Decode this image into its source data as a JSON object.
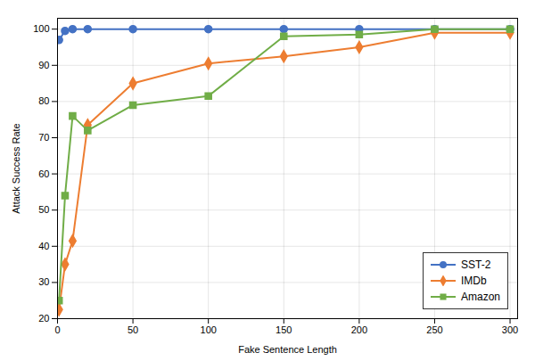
{
  "chart_data": {
    "type": "line",
    "x": [
      1,
      5,
      10,
      20,
      50,
      100,
      150,
      200,
      250,
      300
    ],
    "series": [
      {
        "name": "SST-2",
        "color": "#4472C4",
        "marker": "circle",
        "values": [
          97,
          99.5,
          100,
          100,
          100,
          100,
          100,
          100,
          100,
          100
        ]
      },
      {
        "name": "IMDb",
        "color": "#ED7D31",
        "marker": "diamond",
        "values": [
          22.5,
          35,
          41.5,
          73.5,
          85,
          90.5,
          92.5,
          95,
          99,
          99
        ]
      },
      {
        "name": "Amazon",
        "color": "#70AD47",
        "marker": "square",
        "values": [
          25,
          54,
          76,
          72,
          79,
          81.5,
          98,
          98.5,
          100,
          100
        ]
      }
    ],
    "xlabel": "Fake Sentence Length",
    "ylabel": "Attack Success Rate",
    "xlim": [
      0,
      305
    ],
    "ylim": [
      20,
      103
    ],
    "xticks": [
      0,
      50,
      100,
      150,
      200,
      250,
      300
    ],
    "yticks": [
      20,
      30,
      40,
      50,
      60,
      70,
      80,
      90,
      100
    ],
    "grid": true,
    "legend": "lower right"
  }
}
